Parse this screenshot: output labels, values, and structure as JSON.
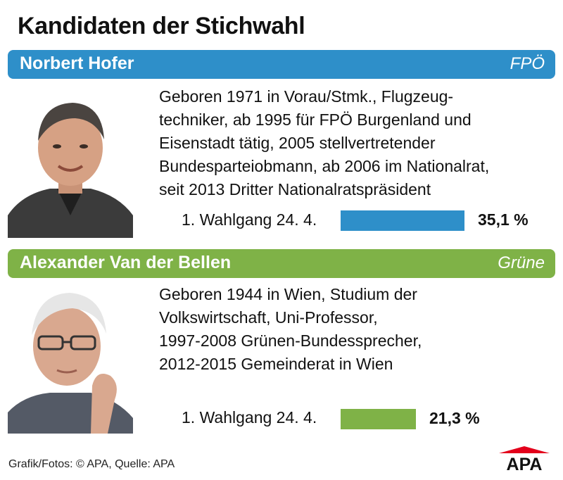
{
  "title": "Kandidaten der Stichwahl",
  "candidates": [
    {
      "name": "Norbert Hofer",
      "party": "FPÖ",
      "bio_lines": [
        "Geboren 1971 in Vorau/Stmk., Flugzeug-",
        "techniker, ab 1995 für FPÖ Burgenland und",
        "Eisenstadt tätig, 2005 stellvertretender",
        "Bundesparteiobmann, ab 2006 im Nationalrat,",
        "seit 2013 Dritter Nationalratspräsident"
      ],
      "round_label": "1. Wahlgang 24. 4.",
      "value_label": "35,1 %",
      "color": "#2e8fc9"
    },
    {
      "name": "Alexander Van der Bellen",
      "party": "Grüne",
      "bio_lines": [
        "Geboren 1944 in Wien, Studium der",
        "Volkswirtschaft, Uni-Professor,",
        "1997-2008 Grünen-Bundessprecher,",
        "2012-2015 Gemeinderat in Wien"
      ],
      "round_label": "1. Wahlgang 24. 4.",
      "value_label": "21,3 %",
      "color": "#7fb247"
    }
  ],
  "chart_data": {
    "type": "bar",
    "orientation": "horizontal",
    "title": "Kandidaten der Stichwahl",
    "categories": [
      "Norbert Hofer",
      "Alexander Van der Bellen"
    ],
    "values": [
      35.1,
      21.3
    ],
    "unit": "%",
    "category_label": "1. Wahlgang 24. 4.",
    "colors": [
      "#2e8fc9",
      "#7fb247"
    ]
  },
  "source": "Grafik/Fotos: © APA, Quelle: APA",
  "logo_text": "APA",
  "logo_color": "#e3001b"
}
